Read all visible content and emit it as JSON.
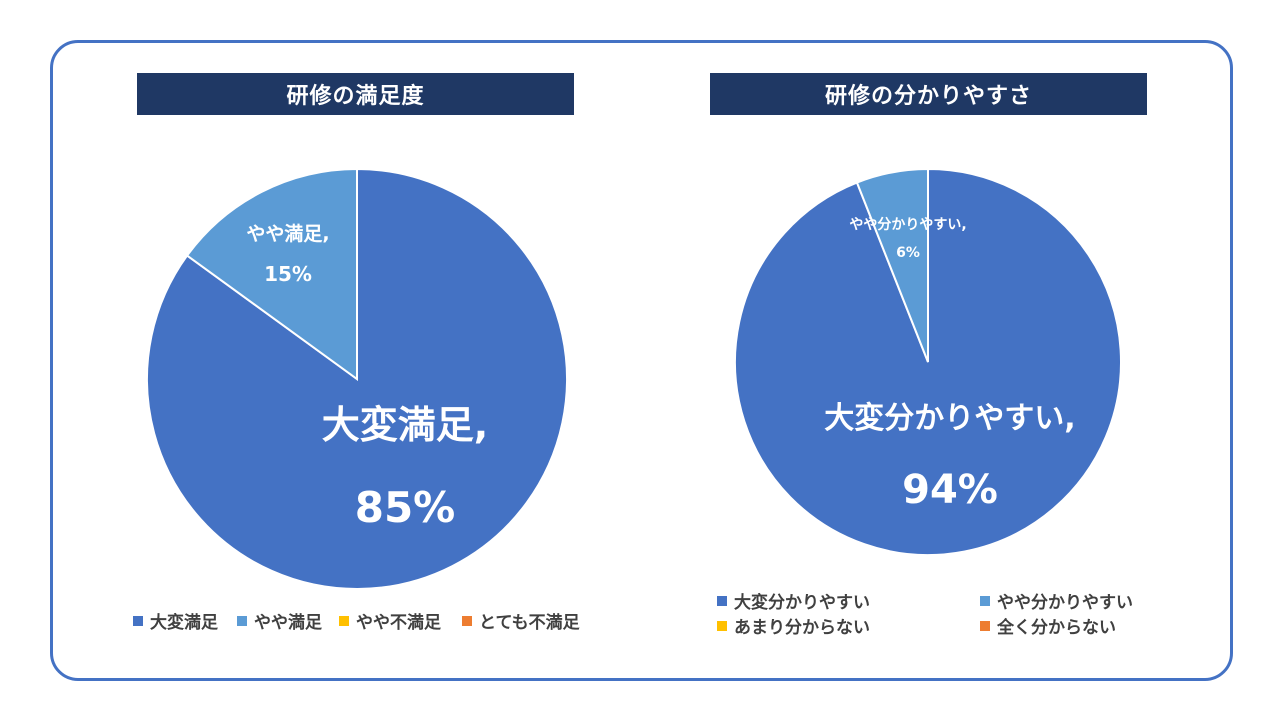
{
  "colors": {
    "frame": "#4472c4",
    "title_bg": "#1f3864",
    "title_text": "#ffffff",
    "legend_text": "#404040",
    "slice_text": "#ffffff"
  },
  "chart_data": [
    {
      "type": "pie",
      "title": "研修の満足度",
      "categories": [
        "大変満足",
        "やや満足",
        "やや不満足",
        "とても不満足"
      ],
      "values": [
        85,
        15,
        0,
        0
      ],
      "colors": [
        "#4472c4",
        "#5b9bd5",
        "#ffc000",
        "#ed7d31"
      ],
      "data_labels": [
        {
          "name": "大変満足,",
          "value": "85%"
        },
        {
          "name": "やや満足,",
          "value": "15%"
        },
        null,
        null
      ],
      "legend_position": "bottom"
    },
    {
      "type": "pie",
      "title": "研修の分かりやすさ",
      "categories": [
        "大変分かりやすい",
        "やや分かりやすい",
        "あまり分からない",
        "全く分からない"
      ],
      "values": [
        94,
        6,
        0,
        0
      ],
      "colors": [
        "#4472c4",
        "#5b9bd5",
        "#ffc000",
        "#ed7d31"
      ],
      "data_labels": [
        {
          "name": "大変分かりやすい,",
          "value": "94%"
        },
        {
          "name": "やや分かりやすい,",
          "value": "6%"
        },
        null,
        null
      ],
      "legend_position": "bottom"
    }
  ]
}
